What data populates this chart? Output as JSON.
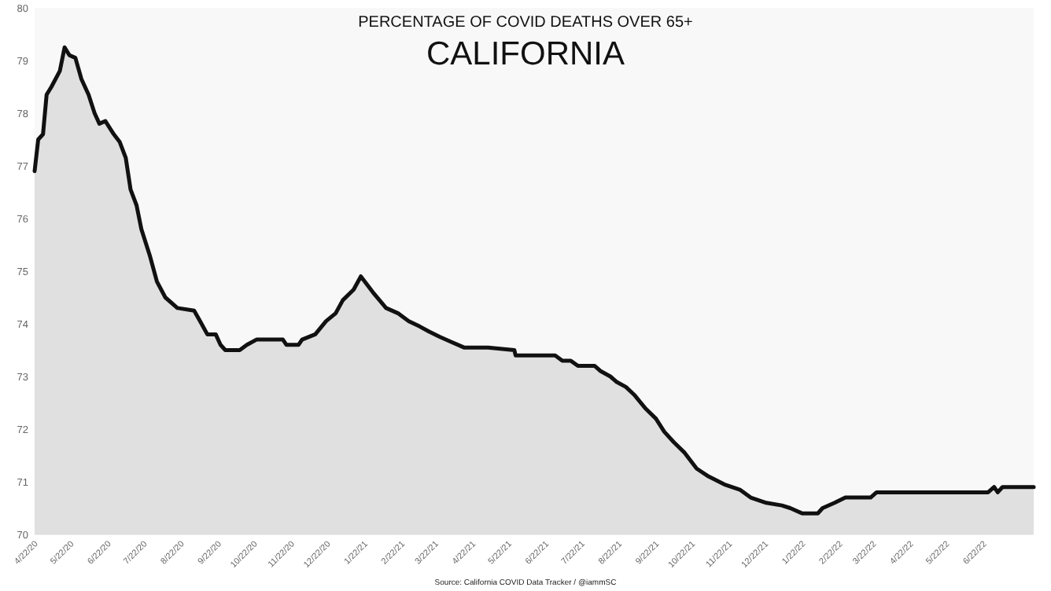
{
  "chart_data": {
    "type": "area",
    "title": "PERCENTAGE OF COVID DEATHS OVER 65+",
    "subtitle": "CALIFORNIA",
    "annotations": [
      "Source: California COVID Data Tracker / @iammSC"
    ],
    "x": [
      "2020-04-22",
      "2020-04-25",
      "2020-04-29",
      "2020-05-02",
      "2020-05-06",
      "2020-05-13",
      "2020-05-17",
      "2020-05-21",
      "2020-05-26",
      "2020-05-31",
      "2020-06-06",
      "2020-06-11",
      "2020-06-15",
      "2020-06-20",
      "2020-06-27",
      "2020-07-02",
      "2020-07-07",
      "2020-07-11",
      "2020-07-16",
      "2020-07-20",
      "2020-07-27",
      "2020-08-02",
      "2020-08-09",
      "2020-08-19",
      "2020-09-02",
      "2020-09-07",
      "2020-09-13",
      "2020-09-20",
      "2020-09-24",
      "2020-09-28",
      "2020-10-10",
      "2020-10-16",
      "2020-10-24",
      "2020-11-15",
      "2020-11-18",
      "2020-11-28",
      "2020-12-01",
      "2020-12-12",
      "2020-12-21",
      "2020-12-29",
      "2021-01-04",
      "2021-01-13",
      "2021-01-19",
      "2021-01-29",
      "2021-02-09",
      "2021-02-19",
      "2021-02-28",
      "2021-03-09",
      "2021-03-17",
      "2021-03-26",
      "2021-04-05",
      "2021-04-15",
      "2021-05-05",
      "2021-05-27",
      "2021-05-28",
      "2021-06-30",
      "2021-07-06",
      "2021-07-13",
      "2021-07-19",
      "2021-08-02",
      "2021-08-07",
      "2021-08-15",
      "2021-08-20",
      "2021-08-28",
      "2021-09-04",
      "2021-09-13",
      "2021-09-22",
      "2021-09-29",
      "2021-10-07",
      "2021-10-16",
      "2021-10-26",
      "2021-11-05",
      "2021-11-18",
      "2021-12-01",
      "2021-12-10",
      "2021-12-23",
      "2022-01-05",
      "2022-01-12",
      "2022-01-22",
      "2022-02-04",
      "2022-02-08",
      "2022-02-18",
      "2022-02-27",
      "2022-03-20",
      "2022-03-25",
      "2022-06-26",
      "2022-07-01",
      "2022-07-04",
      "2022-07-08",
      "2022-08-03"
    ],
    "series": [
      {
        "color": "#111111",
        "values": [
          76.9,
          77.5,
          77.6,
          78.35,
          78.5,
          78.8,
          79.25,
          79.1,
          79.05,
          78.65,
          78.35,
          78.0,
          77.8,
          77.85,
          77.6,
          77.45,
          77.15,
          76.55,
          76.25,
          75.8,
          75.3,
          74.8,
          74.5,
          74.3,
          74.25,
          74.05,
          73.8,
          73.8,
          73.6,
          73.5,
          73.5,
          73.6,
          73.7,
          73.7,
          73.6,
          73.6,
          73.7,
          73.8,
          74.05,
          74.2,
          74.45,
          74.65,
          74.9,
          74.6,
          74.3,
          74.2,
          74.05,
          73.95,
          73.85,
          73.75,
          73.65,
          73.55,
          73.55,
          73.5,
          73.4,
          73.4,
          73.3,
          73.3,
          73.2,
          73.2,
          73.1,
          73.0,
          72.9,
          72.8,
          72.65,
          72.4,
          72.2,
          71.95,
          71.75,
          71.55,
          71.25,
          71.1,
          70.95,
          70.85,
          70.7,
          70.6,
          70.55,
          70.5,
          70.4,
          70.4,
          70.5,
          70.6,
          70.7,
          70.7,
          70.8,
          70.8,
          70.9,
          70.8,
          70.9,
          70.9
        ]
      }
    ],
    "ylim": [
      70,
      80
    ],
    "yticks": [
      70,
      71,
      72,
      73,
      74,
      75,
      76,
      77,
      78,
      79,
      80
    ],
    "grid": false,
    "xlim": [
      "2020-04-22",
      "2022-08-03"
    ],
    "xticks": [
      {
        "value": "2020-04-22",
        "label": "4/22/20"
      },
      {
        "value": "2020-05-22",
        "label": "5/22/20"
      },
      {
        "value": "2020-06-22",
        "label": "6/22/20"
      },
      {
        "value": "2020-07-22",
        "label": "7/22/20"
      },
      {
        "value": "2020-08-22",
        "label": "8/22/20"
      },
      {
        "value": "2020-09-22",
        "label": "9/22/20"
      },
      {
        "value": "2020-10-22",
        "label": "10/22/20"
      },
      {
        "value": "2020-11-22",
        "label": "11/22/20"
      },
      {
        "value": "2020-12-22",
        "label": "12/22/20"
      },
      {
        "value": "2021-01-22",
        "label": "1/22/21"
      },
      {
        "value": "2021-02-22",
        "label": "2/22/21"
      },
      {
        "value": "2021-03-22",
        "label": "3/22/21"
      },
      {
        "value": "2021-04-22",
        "label": "4/22/21"
      },
      {
        "value": "2021-05-22",
        "label": "5/22/21"
      },
      {
        "value": "2021-06-22",
        "label": "6/22/21"
      },
      {
        "value": "2021-07-22",
        "label": "7/22/21"
      },
      {
        "value": "2021-08-22",
        "label": "8/22/21"
      },
      {
        "value": "2021-09-22",
        "label": "9/22/21"
      },
      {
        "value": "2021-10-22",
        "label": "10/22/21"
      },
      {
        "value": "2021-11-22",
        "label": "11/22/21"
      },
      {
        "value": "2021-12-22",
        "label": "12/22/21"
      },
      {
        "value": "2022-01-22",
        "label": "1/22/22"
      },
      {
        "value": "2022-02-22",
        "label": "2/22/22"
      },
      {
        "value": "2022-03-22",
        "label": "3/22/22"
      },
      {
        "value": "2022-04-22",
        "label": "4/22/22"
      },
      {
        "value": "2022-05-22",
        "label": "5/22/22"
      },
      {
        "value": "2022-06-22",
        "label": "6/22/22"
      }
    ]
  }
}
